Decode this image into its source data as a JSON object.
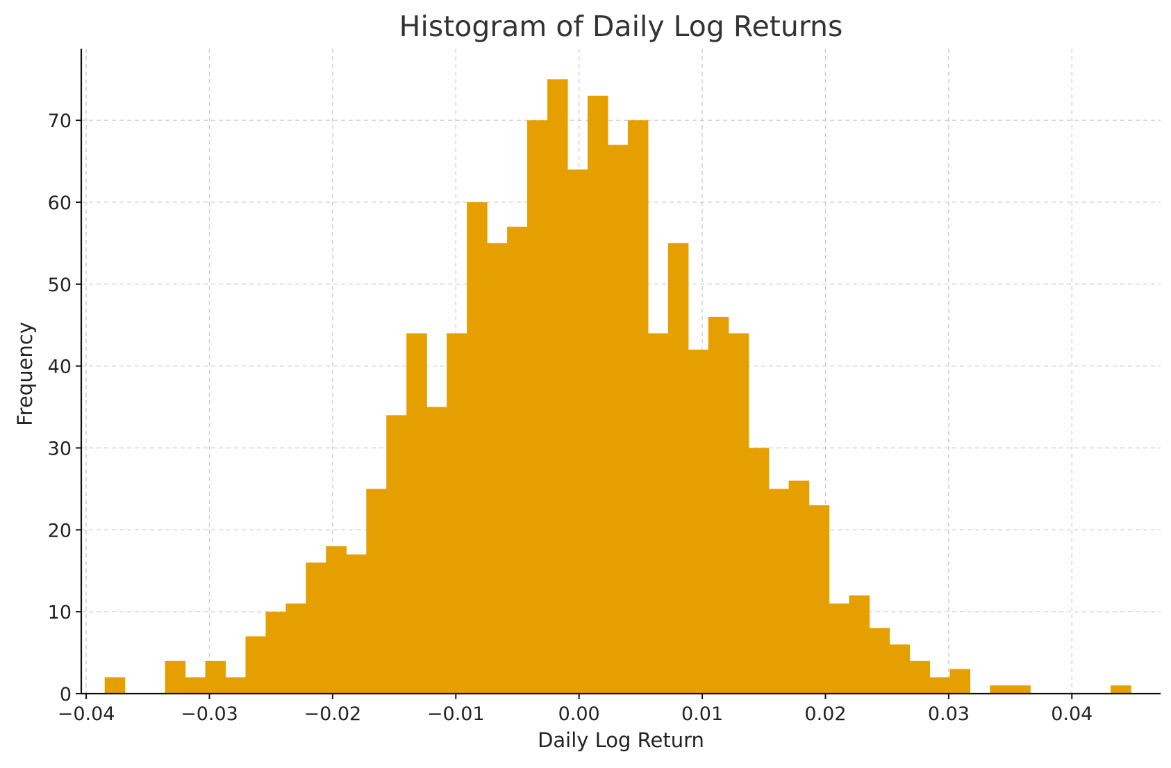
{
  "chart_data": {
    "type": "bar",
    "title": "Histogram of Daily Log Returns",
    "xlabel": "Daily Log Return",
    "ylabel": "Frequency",
    "xlim": [
      -0.0404,
      0.0472
    ],
    "ylim": [
      0,
      78.75
    ],
    "xticks": [
      -0.04,
      -0.03,
      -0.02,
      -0.01,
      0.0,
      0.01,
      0.02,
      0.03,
      0.04
    ],
    "xtick_labels": [
      "−0.04",
      "−0.03",
      "−0.02",
      "−0.01",
      "0.00",
      "0.01",
      "0.02",
      "0.03",
      "0.04"
    ],
    "yticks": [
      0,
      10,
      20,
      30,
      40,
      50,
      60,
      70
    ],
    "ytick_labels": [
      "0",
      "10",
      "20",
      "30",
      "40",
      "50",
      "60",
      "70"
    ],
    "grid": true,
    "bar_color": "#E5A000",
    "bin_start": -0.0385,
    "bin_width": 0.001633,
    "values": [
      2,
      0,
      0,
      4,
      2,
      4,
      2,
      7,
      10,
      11,
      16,
      18,
      17,
      25,
      34,
      44,
      35,
      44,
      60,
      55,
      57,
      70,
      75,
      64,
      73,
      67,
      70,
      44,
      55,
      42,
      46,
      44,
      30,
      25,
      26,
      23,
      11,
      12,
      8,
      6,
      4,
      2,
      3,
      0,
      1,
      1,
      0,
      0,
      0,
      0,
      1
    ]
  }
}
